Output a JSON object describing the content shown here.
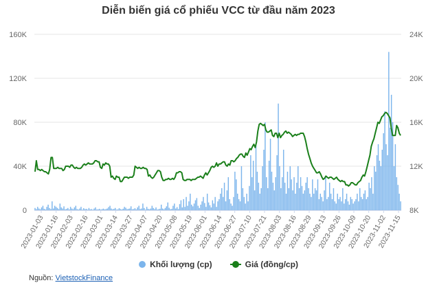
{
  "chart_data": {
    "type": "bar+line",
    "title": "Diễn biến giá cổ phiếu VCC từ đầu năm 2023",
    "legend": [
      {
        "name": "Khối lượng (cp)",
        "color": "#7cb5ec",
        "marker": "circle"
      },
      {
        "name": "Giá (đồng/cp)",
        "color": "#1a7f1a",
        "marker": "line"
      }
    ],
    "legend_position": "bottom",
    "grid": true,
    "left_axis": {
      "ticks": [
        "0",
        "40K",
        "80K",
        "120K",
        "160K"
      ],
      "min": 0,
      "max": 160000
    },
    "right_axis": {
      "ticks": [
        "8K",
        "12K",
        "16K",
        "20K",
        "24K"
      ],
      "min": 8000,
      "max": 24000
    },
    "x_tick_labels": [
      "2023-01-03",
      "2023-01-16",
      "2023-02-03",
      "2023-02-16",
      "2023-03-01",
      "2023-03-14",
      "2023-03-27",
      "2023-04-07",
      "2023-04-20",
      "2023-05-08",
      "2023-05-19",
      "2023-06-01",
      "2023-06-14",
      "2023-06-27",
      "2023-07-10",
      "2023-07-21",
      "2023-08-03",
      "2023-08-16",
      "2023-08-29",
      "2023-09-13",
      "2023-09-26",
      "2023-10-09",
      "2023-10-20",
      "2023-11-02",
      "2023-11-15"
    ],
    "series": [
      {
        "name": "Khối lượng (cp)",
        "axis": "left",
        "type": "bar",
        "values": [
          2000,
          1000,
          3000,
          1500,
          800,
          2500,
          4000,
          1200,
          600,
          3000,
          5000,
          2000,
          1000,
          8000,
          1500,
          4000,
          3000,
          2000,
          1000,
          6000,
          2500,
          1500,
          3500,
          800,
          1200,
          2000,
          700,
          3000,
          1500,
          900,
          2500,
          4000,
          1000,
          600,
          1500,
          3000,
          500,
          1800,
          900,
          1200,
          500,
          2000,
          700,
          1000,
          400,
          1500,
          2500,
          600,
          800,
          1200,
          500,
          900,
          1400,
          700,
          1000,
          1500,
          2800,
          4000,
          1500,
          800,
          1200,
          2000,
          500,
          700,
          1800,
          1000,
          600,
          1300,
          3000,
          2200,
          900,
          1200,
          1500,
          3500,
          800,
          1000,
          1800,
          700,
          2500,
          4000,
          1000,
          1500,
          6000,
          2000,
          500,
          3000,
          1200,
          800,
          1500,
          4000,
          2000,
          1000,
          2500,
          600,
          900,
          1300,
          5000,
          1500,
          800,
          2000,
          3500,
          7000,
          2200,
          900,
          1200,
          4000,
          6000,
          1500,
          2800,
          1000,
          5500,
          9000,
          2500,
          10000,
          3000,
          12000,
          4000,
          8000,
          15000,
          5000,
          3500,
          6000,
          9000,
          11000,
          4000,
          2000,
          5000,
          8000,
          12000,
          6500,
          3000,
          15000,
          7000,
          4500,
          2500,
          9000,
          6000,
          12000,
          3000,
          8000,
          10000,
          15000,
          20000,
          12000,
          25000,
          8000,
          18000,
          30000,
          10000,
          6000,
          4000,
          12000,
          35000,
          28000,
          15000,
          10000,
          8000,
          40000,
          20000,
          12000,
          6000,
          15000,
          8000,
          22000,
          50000,
          30000,
          45000,
          18000,
          60000,
          35000,
          25000,
          15000,
          20000,
          40000,
          55000,
          80000,
          30000,
          20000,
          45000,
          65000,
          35000,
          25000,
          18000,
          30000,
          50000,
          97000,
          40000,
          20000,
          30000,
          55000,
          25000,
          15000,
          35000,
          20000,
          40000,
          28000,
          18000,
          30000,
          15000,
          25000,
          40000,
          20000,
          30000,
          22000,
          15000,
          18000,
          25000,
          30000,
          20000,
          15000,
          12000,
          28000,
          15000,
          20000,
          18000,
          28000,
          10000,
          15000,
          12000,
          8000,
          18000,
          30000,
          10000,
          12000,
          25000,
          15000,
          10000,
          20000,
          8000,
          6000,
          15000,
          10000,
          12000,
          8000,
          20000,
          6000,
          10000,
          15000,
          8000,
          5000,
          12000,
          10000,
          6000,
          8000,
          10000,
          15000,
          8000,
          20000,
          12000,
          10000,
          15000,
          18000,
          10000,
          12000,
          25000,
          20000,
          30000,
          15000,
          40000,
          35000,
          50000,
          60000,
          45000,
          40000,
          55000,
          70000,
          90000,
          60000,
          50000,
          144000,
          75000,
          105000,
          80000,
          40000,
          60000,
          30000,
          23000,
          15000,
          8000
        ]
      },
      {
        "name": "Giá (đồng/cp)",
        "axis": "right",
        "type": "line",
        "values": [
          11500,
          12500,
          11700,
          11700,
          11600,
          11700,
          11600,
          11500,
          11500,
          11400,
          11300,
          11700,
          12800,
          12800,
          11800,
          11800,
          11800,
          11900,
          11800,
          11800,
          11800,
          11600,
          11700,
          12000,
          12000,
          12000,
          11900,
          12100,
          12100,
          11900,
          11800,
          11900,
          11800,
          11800,
          11800,
          11900,
          12100,
          12200,
          12100,
          12200,
          12300,
          12200,
          12200,
          12200,
          12300,
          12500,
          12500,
          12400,
          12400,
          11900,
          11800,
          12200,
          12100,
          12300,
          12200,
          12200,
          12000,
          11000,
          11100,
          10900,
          10800,
          11100,
          11000,
          11000,
          10600,
          10600,
          10800,
          11000,
          11000,
          11000,
          10900,
          11000,
          11000,
          11000,
          11200,
          12000,
          11900,
          11800,
          11900,
          11800,
          11800,
          11900,
          11800,
          11800,
          11700,
          11100,
          11200,
          11000,
          10900,
          11000,
          11200,
          11400,
          11600,
          11600,
          11500,
          11000,
          10700,
          10700,
          10800,
          10800,
          10900,
          10800,
          10800,
          10900,
          10800,
          11000,
          11400,
          11400,
          11500,
          11500,
          11400,
          10800,
          10700,
          10700,
          10800,
          10800,
          10800,
          10700,
          10800,
          10800,
          10800,
          10900,
          11000,
          11000,
          11100,
          11000,
          10900,
          11200,
          11400,
          11200,
          11400,
          11600,
          11900,
          12000,
          11900,
          12000,
          12300,
          12000,
          12200,
          12200,
          12300,
          12400,
          12400,
          12100,
          12000,
          12200,
          12100,
          12500,
          12500,
          12400,
          12500,
          12700,
          12800,
          13000,
          13100,
          13100,
          12900,
          12800,
          13200,
          13000,
          13300,
          13600,
          13500,
          13800,
          14000,
          13700,
          14200,
          15200,
          15800,
          15900,
          15800,
          15700,
          15800,
          15300,
          15100,
          15100,
          15200,
          15300,
          14800,
          14700,
          15000,
          15000,
          14600,
          15000,
          14600,
          14800,
          14900,
          15100,
          15200,
          15000,
          15100,
          15000,
          14900,
          14700,
          14800,
          14900,
          14800,
          14900,
          14900,
          15000,
          15000,
          15000,
          14700,
          14200,
          13600,
          13100,
          12700,
          12300,
          12000,
          11800,
          11600,
          11400,
          11400,
          11500,
          11300,
          11000,
          10800,
          10900,
          11100,
          11000,
          10900,
          11000,
          11000,
          10900,
          10800,
          10900,
          11000,
          10800,
          10700,
          10600,
          10700,
          10600,
          10600,
          10300,
          10300,
          10200,
          10300,
          10500,
          10500,
          10400,
          10300,
          10300,
          10500,
          10600,
          10700,
          11000,
          11200,
          11100,
          11500,
          12000,
          12500,
          13000,
          13800,
          14200,
          14500,
          15000,
          15500,
          16000,
          15900,
          16200,
          16500,
          16600,
          16800,
          16900,
          16800,
          16600,
          16400,
          15500,
          14800,
          14800,
          14800,
          15700,
          15500,
          15000,
          14800
        ]
      }
    ]
  },
  "source": {
    "label": "Nguồn:",
    "link_text": "VietstockFinance"
  }
}
